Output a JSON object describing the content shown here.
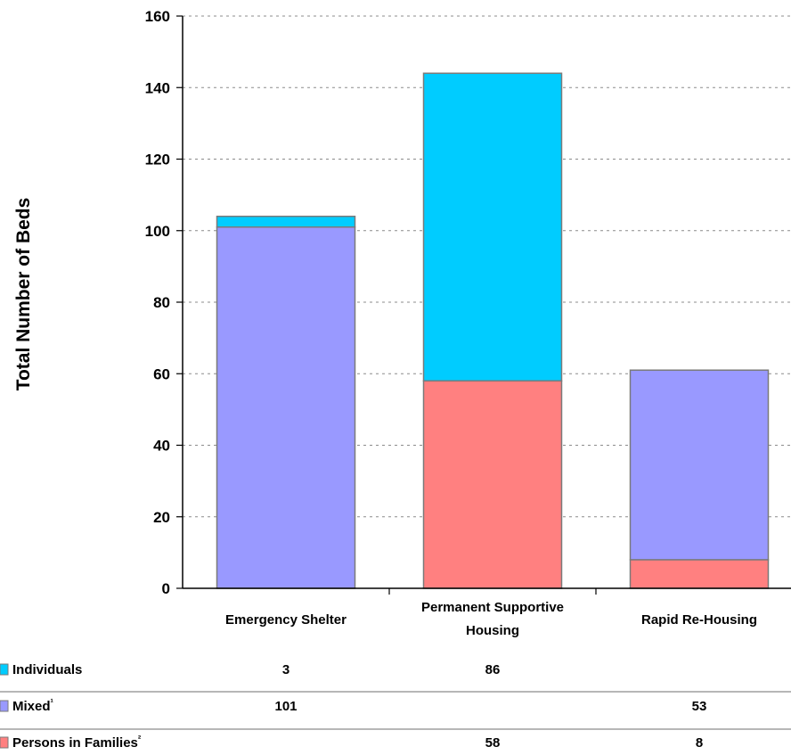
{
  "chart_data": {
    "type": "bar",
    "stacked": true,
    "title": "",
    "xlabel": "",
    "ylabel": "Total Number of Beds",
    "ylim": [
      0,
      160
    ],
    "yticks": [
      0,
      20,
      40,
      60,
      80,
      100,
      120,
      140,
      160
    ],
    "grid": "horizontal dashed",
    "categories": [
      [
        "Emergency Shelter"
      ],
      [
        "Permanent Supportive",
        "Housing"
      ],
      [
        "Rapid Re-Housing"
      ]
    ],
    "series": [
      {
        "name": "Persons in Families",
        "marker": "²",
        "color": "#ff8080",
        "values": [
          0,
          58,
          8
        ],
        "labels": [
          "",
          "58",
          "8"
        ]
      },
      {
        "name": "Mixed",
        "marker": "¹",
        "color": "#9999ff",
        "values": [
          101,
          0,
          53
        ],
        "labels": [
          "101",
          "",
          "53"
        ]
      },
      {
        "name": "Individuals",
        "marker": "",
        "color": "#00ccff",
        "values": [
          3,
          86,
          0
        ],
        "labels": [
          "3",
          "86",
          ""
        ]
      }
    ],
    "table_order": [
      "Individuals",
      "Mixed",
      "Persons in Families"
    ]
  }
}
